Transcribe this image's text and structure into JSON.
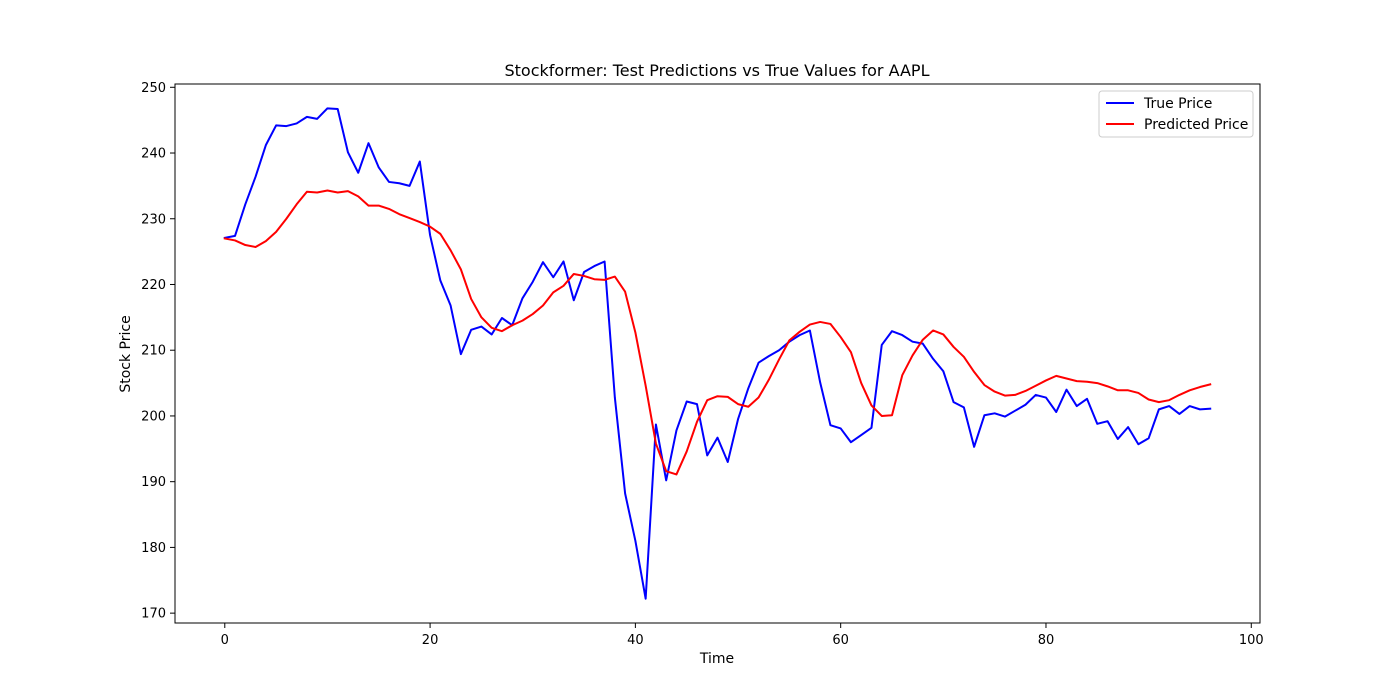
{
  "chart_data": {
    "type": "line",
    "title": "Stockformer: Test Predictions vs True Values for AAPL",
    "xlabel": "Time",
    "ylabel": "Stock Price",
    "xlim": [
      -4.85,
      100.85
    ],
    "ylim": [
      168.5,
      250.5
    ],
    "xticks": [
      0,
      20,
      40,
      60,
      80,
      100
    ],
    "yticks": [
      170,
      180,
      190,
      200,
      210,
      220,
      230,
      240,
      250
    ],
    "grid": false,
    "legend_position": "top-right",
    "series": [
      {
        "name": "True Price",
        "color": "#0000ff",
        "values": [
          227.1,
          227.4,
          232.2,
          236.4,
          241.2,
          244.2,
          244.1,
          244.5,
          245.5,
          245.2,
          246.8,
          246.7,
          240.1,
          237.0,
          241.5,
          237.8,
          235.6,
          235.4,
          235.0,
          238.7,
          227.5,
          220.6,
          216.8,
          209.4,
          213.1,
          213.6,
          212.4,
          214.9,
          213.8,
          217.9,
          220.4,
          223.4,
          221.1,
          223.5,
          217.6,
          221.9,
          222.8,
          223.5,
          202.8,
          188.2,
          181.0,
          172.2,
          198.7,
          190.2,
          197.8,
          202.2,
          201.8,
          194.0,
          196.7,
          193.0,
          199.5,
          204.2,
          208.1,
          209.1,
          210.0,
          211.3,
          212.3,
          213.0,
          205.1,
          198.6,
          198.1,
          196.0,
          197.1,
          198.2,
          210.8,
          212.9,
          212.3,
          211.3,
          211.0,
          208.7,
          206.8,
          202.1,
          201.3,
          195.3,
          200.1,
          200.4,
          199.9,
          200.8,
          201.7,
          203.2,
          202.8,
          200.6,
          204.0,
          201.5,
          202.6,
          198.8,
          199.2,
          196.5,
          198.3,
          195.7,
          196.6,
          201.0,
          201.5,
          200.3,
          201.5,
          201.0,
          201.1
        ]
      },
      {
        "name": "Predicted Price",
        "color": "#ff0000",
        "values": [
          227.0,
          226.7,
          226.0,
          225.7,
          226.6,
          228.0,
          230.0,
          232.2,
          234.1,
          234.0,
          234.3,
          234.0,
          234.2,
          233.4,
          232.0,
          232.0,
          231.5,
          230.7,
          230.1,
          229.5,
          228.8,
          227.7,
          225.2,
          222.3,
          217.8,
          215.0,
          213.4,
          212.9,
          213.8,
          214.5,
          215.5,
          216.8,
          218.8,
          219.8,
          221.6,
          221.3,
          220.8,
          220.7,
          221.2,
          218.9,
          212.7,
          204.6,
          195.8,
          191.6,
          191.1,
          194.6,
          199.1,
          202.4,
          203.0,
          202.9,
          201.8,
          201.4,
          202.8,
          205.5,
          208.6,
          211.5,
          212.8,
          213.9,
          214.3,
          214.0,
          212.0,
          209.7,
          205.0,
          201.6,
          200.0,
          200.1,
          206.2,
          209.2,
          211.6,
          213.0,
          212.4,
          210.5,
          209.0,
          206.7,
          204.7,
          203.7,
          203.1,
          203.2,
          203.8,
          204.6,
          205.4,
          206.1,
          205.7,
          205.3,
          205.2,
          205.0,
          204.5,
          203.9,
          203.9,
          203.5,
          202.5,
          202.1,
          202.4,
          203.2,
          203.9,
          204.4,
          204.8
        ]
      }
    ]
  }
}
